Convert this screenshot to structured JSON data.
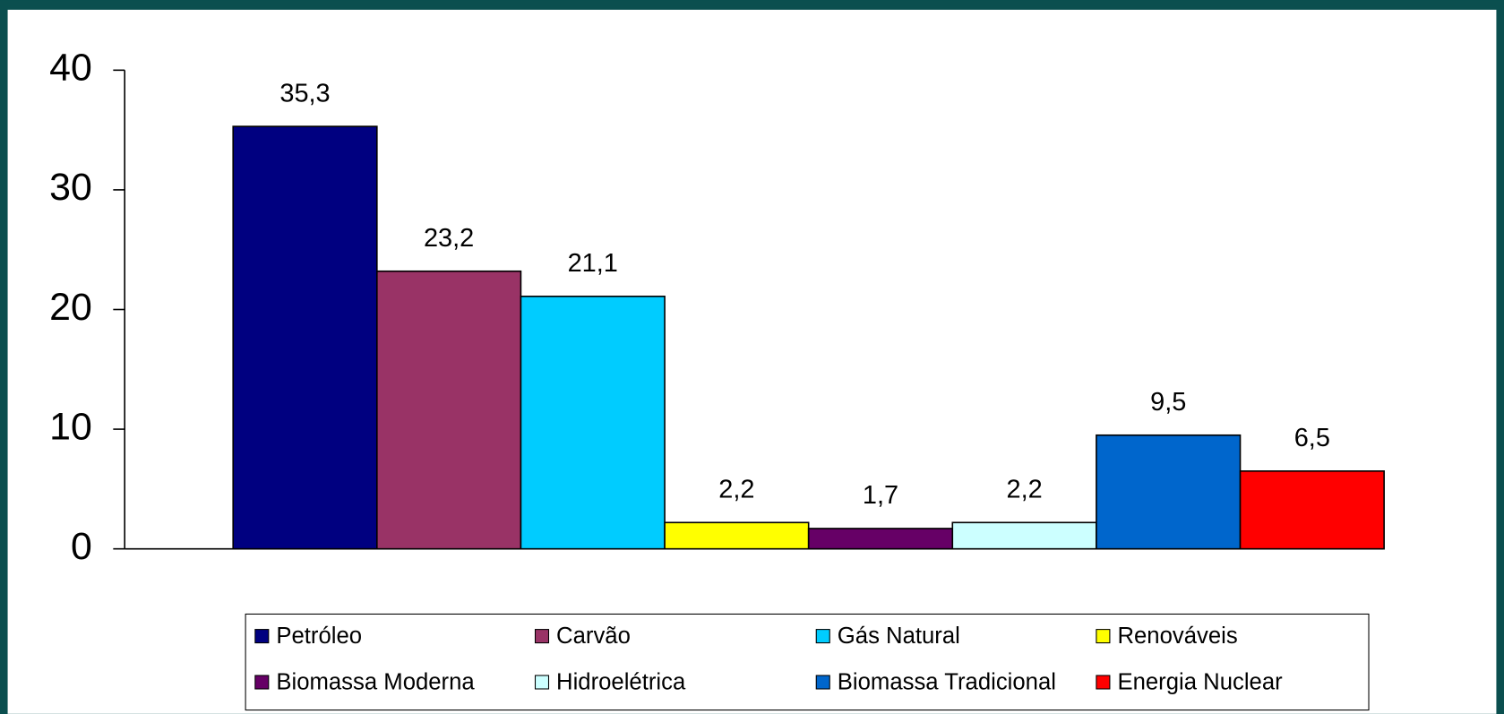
{
  "chart_data": {
    "type": "bar",
    "categories": [
      null
    ],
    "series": [
      {
        "name": "Petróleo",
        "color": "#000080",
        "values": [
          35.3
        ],
        "value_labels": [
          "35,3"
        ]
      },
      {
        "name": "Carvão",
        "color": "#993366",
        "values": [
          23.2
        ],
        "value_labels": [
          "23,2"
        ]
      },
      {
        "name": "Gás Natural",
        "color": "#00ccff",
        "values": [
          21.1
        ],
        "value_labels": [
          "21,1"
        ]
      },
      {
        "name": "Renováveis",
        "color": "#ffff00",
        "values": [
          2.2
        ],
        "value_labels": [
          "2,2"
        ]
      },
      {
        "name": "Biomassa Moderna",
        "color": "#660066",
        "values": [
          1.7
        ],
        "value_labels": [
          "1,7"
        ]
      },
      {
        "name": "Hidroelétrica",
        "color": "#ccffff",
        "values": [
          2.2
        ],
        "value_labels": [
          "2,2"
        ]
      },
      {
        "name": "Biomassa Tradicional",
        "color": "#0066cc",
        "values": [
          9.5
        ],
        "value_labels": [
          "9,5"
        ]
      },
      {
        "name": "Energia Nuclear",
        "color": "#ff0000",
        "values": [
          6.5
        ],
        "value_labels": [
          "6,5"
        ]
      }
    ],
    "ylim": [
      0,
      40
    ],
    "yticks": [
      0,
      10,
      20,
      30,
      40
    ],
    "legend": "bottom"
  }
}
